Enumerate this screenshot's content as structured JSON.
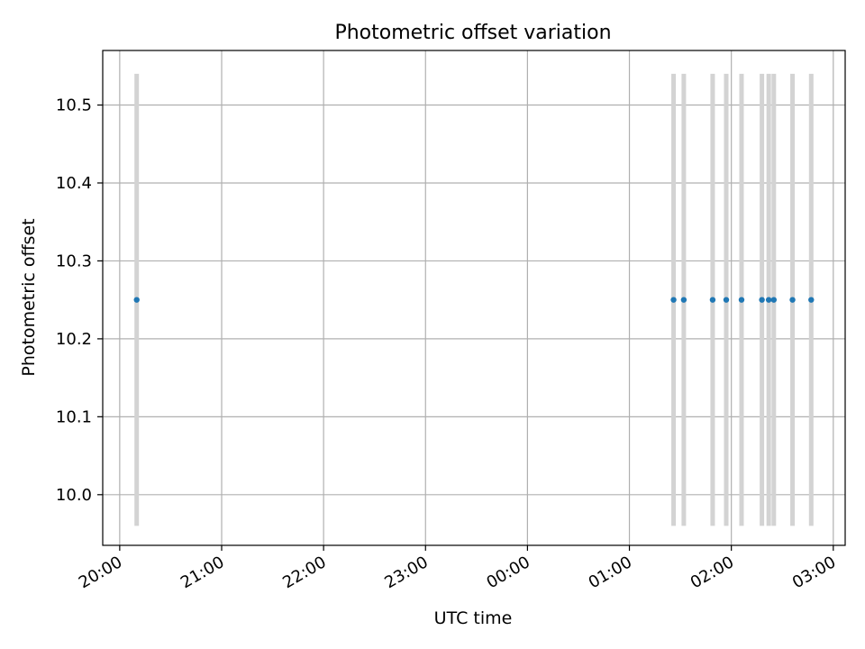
{
  "chart_data": {
    "type": "scatter",
    "title": "Photometric offset variation",
    "xlabel": "UTC time",
    "ylabel": "Photometric offset",
    "x_axis": {
      "kind": "time",
      "range": [
        "19:50",
        "03:07"
      ],
      "ticks": [
        "20:00",
        "21:00",
        "22:00",
        "23:00",
        "00:00",
        "01:00",
        "02:00",
        "03:00"
      ]
    },
    "y_axis": {
      "range": [
        9.935,
        10.57
      ],
      "ticks": [
        "10.0",
        "10.1",
        "10.2",
        "10.3",
        "10.4",
        "10.5"
      ],
      "tick_values": [
        10.0,
        10.1,
        10.2,
        10.3,
        10.4,
        10.5
      ]
    },
    "grid": true,
    "marker_color": "#1f77b4",
    "errorbar_color": "#d3d3d3",
    "series": [
      {
        "points": [
          {
            "x": "20:10",
            "y": 10.25,
            "err": 0.29
          },
          {
            "x": "01:26",
            "y": 10.25,
            "err": 0.29
          },
          {
            "x": "01:32",
            "y": 10.25,
            "err": 0.29
          },
          {
            "x": "01:49",
            "y": 10.25,
            "err": 0.29
          },
          {
            "x": "01:57",
            "y": 10.25,
            "err": 0.29
          },
          {
            "x": "02:06",
            "y": 10.25,
            "err": 0.29
          },
          {
            "x": "02:18",
            "y": 10.25,
            "err": 0.29
          },
          {
            "x": "02:22",
            "y": 10.25,
            "err": 0.29
          },
          {
            "x": "02:25",
            "y": 10.25,
            "err": 0.29
          },
          {
            "x": "02:36",
            "y": 10.25,
            "err": 0.29
          },
          {
            "x": "02:47",
            "y": 10.25,
            "err": 0.29
          }
        ]
      }
    ]
  }
}
